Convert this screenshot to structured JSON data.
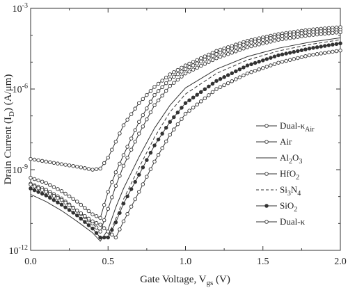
{
  "chart_data": {
    "type": "line",
    "xlabel": "Gate Voltage, V",
    "xlabel_sub": "gs",
    "xlabel_unit": " (V)",
    "ylabel": "Drain Current (I",
    "ylabel_sub": "D",
    "ylabel_unit": ") (A/μm)",
    "xlim": [
      0.0,
      2.0
    ],
    "ylim_exponent": [
      -12,
      -3
    ],
    "y_scale": "log",
    "x_ticks": [
      "0.0",
      "0.5",
      "1.0",
      "1.5",
      "2.0"
    ],
    "y_ticks": [
      {
        "base": "10",
        "exp": "-12"
      },
      {
        "base": "10",
        "exp": "-9"
      },
      {
        "base": "10",
        "exp": "-6"
      },
      {
        "base": "10",
        "exp": "-3"
      }
    ],
    "legend_position": "center-right",
    "x": [
      0.0,
      0.1,
      0.2,
      0.3,
      0.4,
      0.45,
      0.5,
      0.55,
      0.6,
      0.7,
      0.8,
      0.9,
      1.0,
      1.2,
      1.4,
      1.6,
      1.8,
      2.0
    ],
    "series": [
      {
        "name": "Dual-κ",
        "name_sub": "Air",
        "marker": "open-circle",
        "line": "solid",
        "values": [
          2.5e-09,
          2e-09,
          1.6e-09,
          1.3e-09,
          1e-09,
          1.1e-09,
          2.8e-09,
          1.1e-08,
          4.5e-08,
          3e-07,
          1.2e-06,
          3.5e-06,
          7.5e-06,
          2.6e-05,
          6.2e-05,
          0.00011,
          0.00016,
          0.0002
        ]
      },
      {
        "name": "Air",
        "name_sub": "",
        "marker": "open-circle",
        "line": "solid",
        "values": [
          5e-10,
          3.2e-10,
          1.6e-10,
          6.5e-11,
          2.2e-11,
          1.6e-11,
          1.5e-10,
          8e-10,
          3.5e-09,
          6e-08,
          6e-07,
          2.3e-06,
          5.5e-06,
          2e-05,
          5e-05,
          9e-05,
          0.00013,
          0.00016
        ]
      },
      {
        "name": "Al",
        "name_sub": "2",
        "name_tail": "O",
        "name_sub2": "3",
        "marker": "none",
        "line": "solid",
        "values": [
          1.2e-10,
          6.5e-11,
          3e-11,
          1.2e-11,
          4.5e-12,
          2.2e-12,
          6e-12,
          4e-11,
          2e-10,
          3e-09,
          3.5e-08,
          2.5e-07,
          1.1e-06,
          5.5e-06,
          1.6e-05,
          3.3e-05,
          5.5e-05,
          8e-05
        ]
      },
      {
        "name": "HfO",
        "name_sub": "2",
        "marker": "open-circle",
        "line": "solid",
        "values": [
          3e-10,
          1.8e-10,
          8.5e-11,
          3e-11,
          1e-11,
          5e-12,
          3.5e-11,
          2.5e-10,
          1.4e-09,
          2.2e-08,
          2.5e-07,
          1.3e-06,
          3.8e-06,
          1.4e-05,
          3.6e-05,
          6.8e-05,
          0.0001,
          0.00013
        ]
      },
      {
        "name": "Si",
        "name_sub": "3",
        "name_tail": "N",
        "name_sub2": "4",
        "marker": "none",
        "line": "dashed",
        "values": [
          2e-10,
          1.1e-10,
          5e-11,
          2e-11,
          6.5e-12,
          3e-12,
          3.5e-12,
          1.5e-11,
          8e-11,
          1.2e-09,
          1.6e-08,
          1.4e-07,
          6.5e-07,
          3.8e-06,
          1.2e-05,
          2.6e-05,
          4.5e-05,
          6.8e-05
        ]
      },
      {
        "name": "SiO",
        "name_sub": "2",
        "marker": "filled-circle",
        "line": "solid",
        "values": [
          2e-10,
          1.1e-10,
          5e-11,
          2e-11,
          6.5e-12,
          3e-12,
          3e-12,
          1.1e-11,
          5.5e-11,
          6.5e-10,
          8e-09,
          6e-08,
          3e-07,
          2e-06,
          7.5e-06,
          1.8e-05,
          3.2e-05,
          5e-05
        ]
      },
      {
        "name": "Dual-κ",
        "name_sub": "",
        "marker": "open-circle",
        "line": "solid",
        "values": [
          2.8e-10,
          1.5e-10,
          7.5e-11,
          3e-11,
          1.2e-11,
          9e-12,
          5e-12,
          3e-12,
          1.2e-11,
          1.5e-10,
          2e-09,
          2e-08,
          1.2e-07,
          1e-06,
          3.8e-06,
          9.5e-06,
          1.8e-05,
          2.7e-05
        ]
      }
    ]
  }
}
